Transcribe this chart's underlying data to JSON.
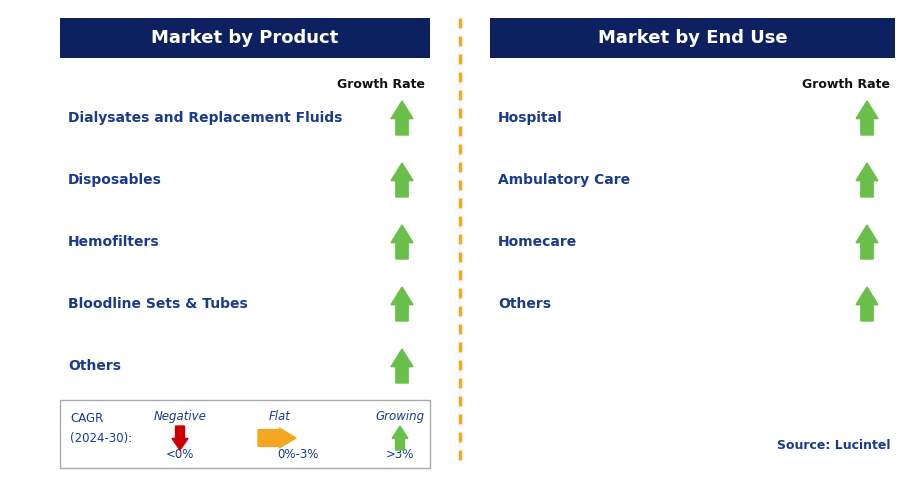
{
  "left_title": "Market by Product",
  "right_title": "Market by End Use",
  "left_items": [
    "Dialysates and Replacement Fluids",
    "Disposables",
    "Hemofilters",
    "Bloodline Sets & Tubes",
    "Others"
  ],
  "right_items": [
    "Hospital",
    "Ambulatory Care",
    "Homecare",
    "Others"
  ],
  "growth_rate_label": "Growth Rate",
  "header_bg": "#0d2060",
  "header_text": "#ffffff",
  "item_text_color": "#1a3a8c",
  "body_bg": "#ffffff",
  "dashed_line_color": "#f5a623",
  "arrow_green": "#6abf4b",
  "arrow_red": "#cc0000",
  "arrow_orange": "#f5a623",
  "legend_label_line1": "CAGR",
  "legend_label_line2": "(2024-30):",
  "legend_negative_label": "Negative",
  "legend_negative_sub": "<0%",
  "legend_flat_label": "Flat",
  "legend_flat_sub": "0%-3%",
  "legend_growing_label": "Growing",
  "legend_growing_sub": ">3%",
  "source_text": "Source: Lucintel"
}
